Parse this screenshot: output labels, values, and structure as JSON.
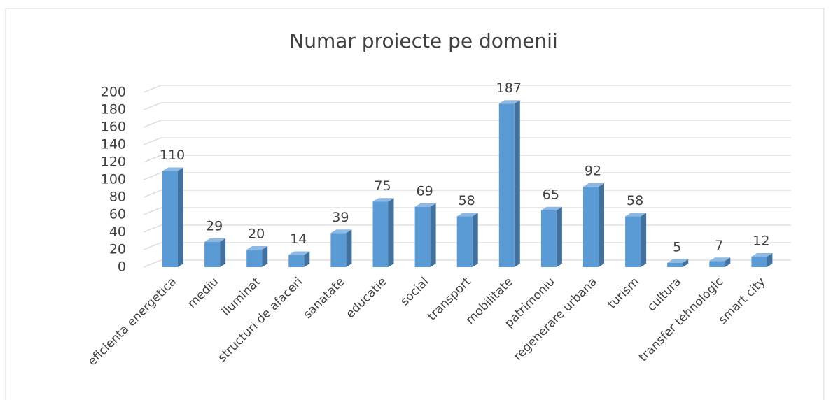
{
  "chart_data": {
    "type": "bar3d",
    "title": "Numar proiecte pe domenii",
    "categories": [
      "eficienta energetica",
      "mediu",
      "iluminat",
      "structuri de afaceri",
      "sanatate",
      "educatie",
      "social",
      "transport",
      "mobilitate",
      "patrimoniu",
      "regenerare urbana",
      "turism",
      "cultura",
      "transfer tehnologic",
      "smart city"
    ],
    "values": [
      110,
      29,
      20,
      14,
      39,
      75,
      69,
      58,
      187,
      65,
      92,
      58,
      5,
      7,
      12
    ],
    "color": "#5b9bd5",
    "ylim": [
      0,
      200
    ],
    "yticks": [
      0,
      20,
      40,
      60,
      80,
      100,
      120,
      140,
      160,
      180,
      200
    ],
    "grid": true
  }
}
